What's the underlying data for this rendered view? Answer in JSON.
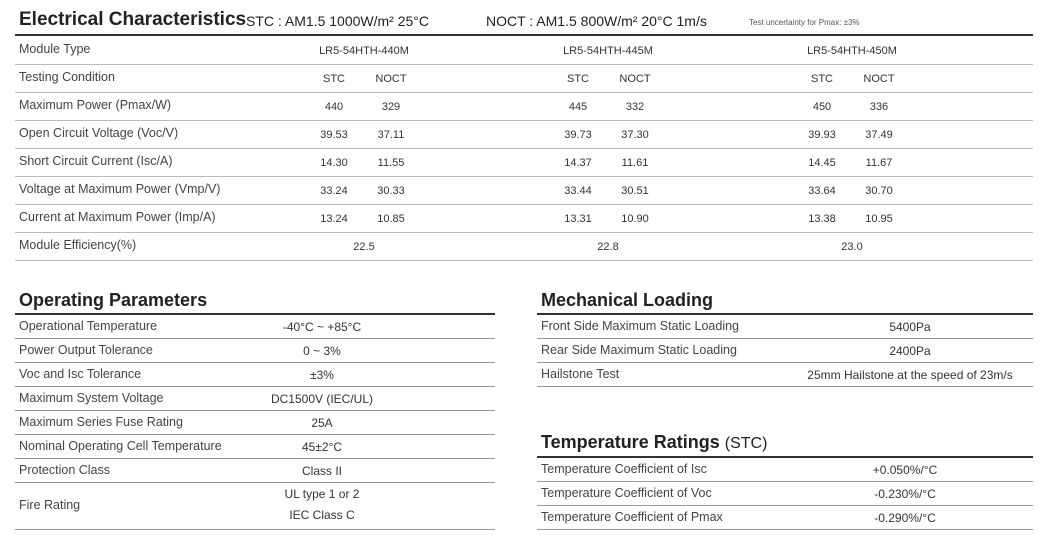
{
  "electrical": {
    "title": "Electrical Characteristics",
    "stc": "STC : AM1.5  1000W/m²  25°C",
    "noct": "NOCT : AM1.5  800W/m²  20°C  1m/s",
    "note": "Test uncertainty for Pmax: ±3%",
    "models": [
      "LR5-54HTH-440M",
      "LR5-54HTH-445M",
      "LR5-54HTH-450M"
    ],
    "module_type_label": "Module Type",
    "testing_label": "Testing Condition",
    "stc_label": "STC",
    "noct_label": "NOCT",
    "rows": [
      {
        "label": "Maximum Power (Pmax/W)",
        "values": [
          [
            "440",
            "329"
          ],
          [
            "445",
            "332"
          ],
          [
            "450",
            "336"
          ]
        ]
      },
      {
        "label": "Open Circuit Voltage (Voc/V)",
        "values": [
          [
            "39.53",
            "37.11"
          ],
          [
            "39.73",
            "37.30"
          ],
          [
            "39.93",
            "37.49"
          ]
        ]
      },
      {
        "label": "Short Circuit Current (Isc/A)",
        "values": [
          [
            "14.30",
            "11.55"
          ],
          [
            "14.37",
            "11.61"
          ],
          [
            "14.45",
            "11.67"
          ]
        ]
      },
      {
        "label": "Voltage at Maximum Power (Vmp/V)",
        "values": [
          [
            "33.24",
            "30.33"
          ],
          [
            "33.44",
            "30.51"
          ],
          [
            "33.64",
            "30.70"
          ]
        ]
      },
      {
        "label": "Current at Maximum Power (Imp/A)",
        "values": [
          [
            "13.24",
            "10.85"
          ],
          [
            "13.31",
            "10.90"
          ],
          [
            "13.38",
            "10.95"
          ]
        ]
      }
    ],
    "efficiency": {
      "label": "Module Efficiency(%)",
      "values": [
        "22.5",
        "22.8",
        "23.0"
      ]
    }
  },
  "operating": {
    "title": "Operating Parameters",
    "rows": [
      {
        "label": "Operational Temperature",
        "value": "-40°C ~ +85°C"
      },
      {
        "label": "Power Output Tolerance",
        "value": "0 ~ 3%"
      },
      {
        "label": "Voc and Isc Tolerance",
        "value": "±3%"
      },
      {
        "label": "Maximum System Voltage",
        "value": "DC1500V (IEC/UL)"
      },
      {
        "label": "Maximum Series Fuse Rating",
        "value": "25A"
      },
      {
        "label": "Nominal Operating Cell Temperature",
        "value": "45±2°C"
      },
      {
        "label": "Protection Class",
        "value": "Class II"
      }
    ],
    "fire": {
      "label": "Fire Rating",
      "value1": "UL type 1 or 2",
      "value2": "IEC Class C"
    }
  },
  "mechanical": {
    "title": "Mechanical Loading",
    "rows": [
      {
        "label": "Front Side Maximum Static Loading",
        "value": "5400Pa"
      },
      {
        "label": "Rear Side Maximum Static Loading",
        "value": "2400Pa"
      },
      {
        "label": "Hailstone Test",
        "value": "25mm Hailstone at the speed of 23m/s"
      }
    ]
  },
  "temperature": {
    "title": "Temperature Ratings",
    "title_suffix": "(STC)",
    "rows": [
      {
        "label": "Temperature Coefficient of  Isc",
        "value": "+0.050%/°C"
      },
      {
        "label": "Temperature Coefficient of  Voc",
        "value": "-0.230%/°C"
      },
      {
        "label": "Temperature Coefficient of  Pmax",
        "value": "-0.290%/°C"
      }
    ]
  }
}
